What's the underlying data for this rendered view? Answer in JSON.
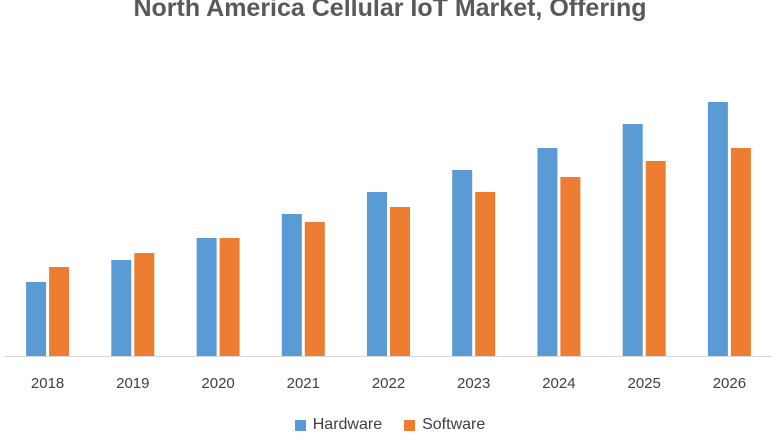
{
  "chart_data": {
    "type": "bar",
    "title": "North America Cellular IoT Market, Offering",
    "categories": [
      "2018",
      "2019",
      "2020",
      "2021",
      "2022",
      "2023",
      "2024",
      "2025",
      "2026"
    ],
    "series": [
      {
        "name": "Hardware",
        "color": "#5B9BD5",
        "values": [
          74,
          96,
          118,
          142,
          164,
          186,
          208,
          232,
          254
        ]
      },
      {
        "name": "Software",
        "color": "#ED7D31",
        "values": [
          89,
          103,
          118,
          134,
          149,
          164,
          179,
          195,
          208
        ]
      }
    ],
    "ylim": [
      0,
      300
    ],
    "grid": false,
    "legend": "bottom"
  }
}
